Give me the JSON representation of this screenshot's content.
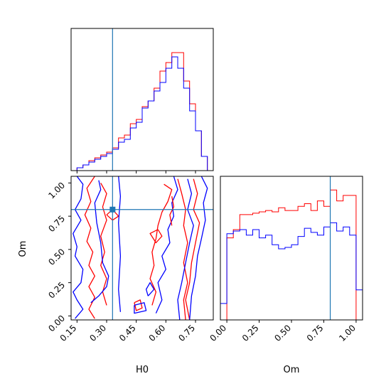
{
  "colors": {
    "run_a": "#ff0000",
    "run_b": "#0000ff",
    "truth": "#1f77b4",
    "frame": "#000000"
  },
  "chart_data": [
    {
      "type": "histogram",
      "panel": "H0-marginal",
      "xlim": [
        0.12,
        0.84
      ],
      "bin_edges": [
        0.12,
        0.15,
        0.18,
        0.21,
        0.24,
        0.27,
        0.3,
        0.33,
        0.36,
        0.39,
        0.42,
        0.45,
        0.48,
        0.51,
        0.54,
        0.57,
        0.6,
        0.63,
        0.66,
        0.69,
        0.72,
        0.75,
        0.78,
        0.81,
        0.84
      ],
      "series": [
        {
          "color": "red",
          "values": [
            0.0,
            0.02,
            0.04,
            0.07,
            0.09,
            0.11,
            0.13,
            0.16,
            0.23,
            0.25,
            0.33,
            0.36,
            0.45,
            0.49,
            0.58,
            0.7,
            0.76,
            0.83,
            0.83,
            0.63,
            0.47,
            0.28,
            0.1,
            0.0
          ]
        },
        {
          "color": "blue",
          "values": [
            0.0,
            0.02,
            0.04,
            0.06,
            0.08,
            0.1,
            0.12,
            0.15,
            0.2,
            0.22,
            0.3,
            0.34,
            0.44,
            0.49,
            0.56,
            0.62,
            0.72,
            0.8,
            0.72,
            0.58,
            0.42,
            0.28,
            0.1,
            0.0
          ]
        }
      ],
      "truth_x": 0.33
    },
    {
      "type": "contour",
      "panel": "H0-Om",
      "xlabel": "H0",
      "ylabel": "Om",
      "xlim": [
        0.12,
        0.84
      ],
      "ylim": [
        -0.03,
        1.05
      ],
      "xticks": [
        "0.15",
        "0.30",
        "0.45",
        "0.60",
        "0.75"
      ],
      "yticks": [
        "0.00",
        "0.25",
        "0.50",
        "0.75",
        "1.00"
      ],
      "truth": {
        "x": 0.33,
        "y": 0.8
      },
      "contours": [
        {
          "color": "blue",
          "points": [
            [
              0.15,
              1.05
            ],
            [
              0.18,
              0.99
            ],
            [
              0.17,
              0.88
            ],
            [
              0.14,
              0.8
            ],
            [
              0.17,
              0.72
            ],
            [
              0.13,
              0.62
            ],
            [
              0.15,
              0.52
            ],
            [
              0.14,
              0.45
            ],
            [
              0.18,
              0.35
            ],
            [
              0.17,
              0.25
            ],
            [
              0.13,
              0.18
            ],
            [
              0.15,
              0.12
            ],
            [
              0.18,
              0.05
            ],
            [
              0.14,
              -0.02
            ]
          ]
        },
        {
          "color": "red",
          "points": [
            [
              0.24,
              1.05
            ],
            [
              0.2,
              0.96
            ],
            [
              0.22,
              0.86
            ],
            [
              0.19,
              0.76
            ],
            [
              0.22,
              0.66
            ],
            [
              0.2,
              0.56
            ],
            [
              0.23,
              0.48
            ],
            [
              0.21,
              0.38
            ],
            [
              0.24,
              0.3
            ],
            [
              0.21,
              0.22
            ],
            [
              0.24,
              0.14
            ],
            [
              0.21,
              0.05
            ],
            [
              0.24,
              -0.02
            ]
          ]
        },
        {
          "color": "red",
          "points": [
            [
              0.27,
              1.0
            ],
            [
              0.3,
              0.92
            ],
            [
              0.28,
              0.82
            ],
            [
              0.3,
              0.72
            ],
            [
              0.27,
              0.6
            ],
            [
              0.29,
              0.48
            ],
            [
              0.27,
              0.38
            ],
            [
              0.3,
              0.28
            ],
            [
              0.28,
              0.18
            ],
            [
              0.3,
              0.08
            ]
          ]
        },
        {
          "color": "blue",
          "points": [
            [
              0.22,
              0.1
            ],
            [
              0.26,
              0.15
            ],
            [
              0.3,
              0.22
            ],
            [
              0.31,
              0.3
            ],
            [
              0.28,
              0.4
            ],
            [
              0.27,
              0.55
            ],
            [
              0.25,
              0.7
            ],
            [
              0.24,
              0.85
            ],
            [
              0.27,
              0.95
            ],
            [
              0.26,
              1.02
            ]
          ]
        },
        {
          "color": "red",
          "points": [
            [
              0.3,
              0.76
            ],
            [
              0.33,
              0.72
            ],
            [
              0.36,
              0.75
            ],
            [
              0.33,
              0.8
            ],
            [
              0.3,
              0.76
            ]
          ]
        },
        {
          "color": "blue",
          "points": [
            [
              0.36,
              1.05
            ],
            [
              0.37,
              0.9
            ],
            [
              0.36,
              0.7
            ],
            [
              0.37,
              0.45
            ],
            [
              0.36,
              0.2
            ],
            [
              0.37,
              0.03
            ]
          ]
        },
        {
          "color": "blue",
          "points": [
            [
              0.64,
              1.05
            ],
            [
              0.66,
              0.95
            ],
            [
              0.63,
              0.85
            ],
            [
              0.64,
              0.75
            ],
            [
              0.61,
              0.65
            ],
            [
              0.62,
              0.55
            ],
            [
              0.58,
              0.45
            ],
            [
              0.6,
              0.35
            ],
            [
              0.56,
              0.25
            ],
            [
              0.58,
              0.12
            ],
            [
              0.55,
              0.02
            ]
          ]
        },
        {
          "color": "red",
          "points": [
            [
              0.59,
              0.99
            ],
            [
              0.63,
              0.95
            ],
            [
              0.61,
              0.86
            ],
            [
              0.58,
              0.78
            ],
            [
              0.56,
              0.68
            ],
            [
              0.55,
              0.58
            ],
            [
              0.53,
              0.48
            ],
            [
              0.54,
              0.38
            ],
            [
              0.52,
              0.28
            ],
            [
              0.55,
              0.18
            ],
            [
              0.53,
              0.08
            ]
          ]
        },
        {
          "color": "red",
          "points": [
            [
              0.66,
              1.03
            ],
            [
              0.68,
              0.92
            ],
            [
              0.7,
              0.8
            ],
            [
              0.69,
              0.68
            ],
            [
              0.71,
              0.55
            ],
            [
              0.69,
              0.4
            ],
            [
              0.71,
              0.25
            ],
            [
              0.69,
              0.12
            ],
            [
              0.7,
              -0.03
            ]
          ]
        },
        {
          "color": "red",
          "points": [
            [
              0.74,
              1.03
            ],
            [
              0.76,
              0.92
            ],
            [
              0.74,
              0.8
            ],
            [
              0.77,
              0.7
            ],
            [
              0.75,
              0.55
            ],
            [
              0.73,
              0.4
            ],
            [
              0.72,
              0.25
            ],
            [
              0.7,
              0.12
            ],
            [
              0.72,
              -0.03
            ]
          ]
        },
        {
          "color": "blue",
          "points": [
            [
              0.71,
              1.03
            ],
            [
              0.73,
              0.92
            ],
            [
              0.71,
              0.8
            ],
            [
              0.74,
              0.68
            ],
            [
              0.72,
              0.55
            ],
            [
              0.7,
              0.4
            ],
            [
              0.68,
              0.25
            ],
            [
              0.66,
              0.12
            ],
            [
              0.67,
              -0.03
            ]
          ]
        },
        {
          "color": "blue",
          "points": [
            [
              0.78,
              1.05
            ],
            [
              0.81,
              0.96
            ],
            [
              0.79,
              0.85
            ],
            [
              0.8,
              0.72
            ],
            [
              0.78,
              0.58
            ],
            [
              0.76,
              0.45
            ],
            [
              0.75,
              0.3
            ],
            [
              0.73,
              0.15
            ],
            [
              0.72,
              -0.03
            ]
          ]
        },
        {
          "color": "red",
          "points": [
            [
              0.63,
              0.9
            ],
            [
              0.64,
              0.82
            ],
            [
              0.62,
              0.76
            ],
            [
              0.63,
              0.68
            ]
          ]
        },
        {
          "color": "blue",
          "points": [
            [
              0.51,
              0.15
            ],
            [
              0.54,
              0.2
            ],
            [
              0.52,
              0.25
            ],
            [
              0.5,
              0.2
            ],
            [
              0.51,
              0.15
            ]
          ]
        },
        {
          "color": "red",
          "points": [
            [
              0.44,
              0.1
            ],
            [
              0.47,
              0.12
            ],
            [
              0.48,
              0.06
            ],
            [
              0.45,
              0.04
            ],
            [
              0.44,
              0.1
            ]
          ]
        },
        {
          "color": "blue",
          "points": [
            [
              0.44,
              0.08
            ],
            [
              0.49,
              0.1
            ],
            [
              0.5,
              0.04
            ],
            [
              0.44,
              0.02
            ],
            [
              0.44,
              0.08
            ]
          ]
        },
        {
          "color": "red",
          "points": [
            [
              0.56,
              0.65
            ],
            [
              0.58,
              0.6
            ],
            [
              0.55,
              0.55
            ],
            [
              0.52,
              0.62
            ],
            [
              0.56,
              0.65
            ]
          ]
        }
      ]
    },
    {
      "type": "histogram",
      "panel": "Om-marginal",
      "xlabel": "Om",
      "xlim": [
        -0.05,
        1.05
      ],
      "xticks": [
        "0.00",
        "0.25",
        "0.50",
        "0.75",
        "1.00"
      ],
      "bin_edges": [
        -0.05,
        0.0,
        0.05,
        0.1,
        0.15,
        0.2,
        0.25,
        0.3,
        0.35,
        0.4,
        0.45,
        0.5,
        0.55,
        0.6,
        0.65,
        0.7,
        0.75,
        0.8,
        0.85,
        0.9,
        0.95,
        1.0,
        1.05
      ],
      "series": [
        {
          "color": "red",
          "values": [
            0.0,
            0.6,
            0.66,
            0.77,
            0.77,
            0.78,
            0.79,
            0.8,
            0.79,
            0.82,
            0.8,
            0.8,
            0.83,
            0.85,
            0.8,
            0.87,
            0.83,
            0.95,
            0.87,
            0.91,
            0.91,
            0.0
          ]
        },
        {
          "color": "blue",
          "values": [
            0.12,
            0.63,
            0.65,
            0.66,
            0.62,
            0.66,
            0.6,
            0.62,
            0.55,
            0.52,
            0.53,
            0.55,
            0.61,
            0.67,
            0.64,
            0.62,
            0.68,
            0.71,
            0.65,
            0.68,
            0.62,
            0.22
          ]
        }
      ],
      "truth_x": 0.8
    }
  ]
}
